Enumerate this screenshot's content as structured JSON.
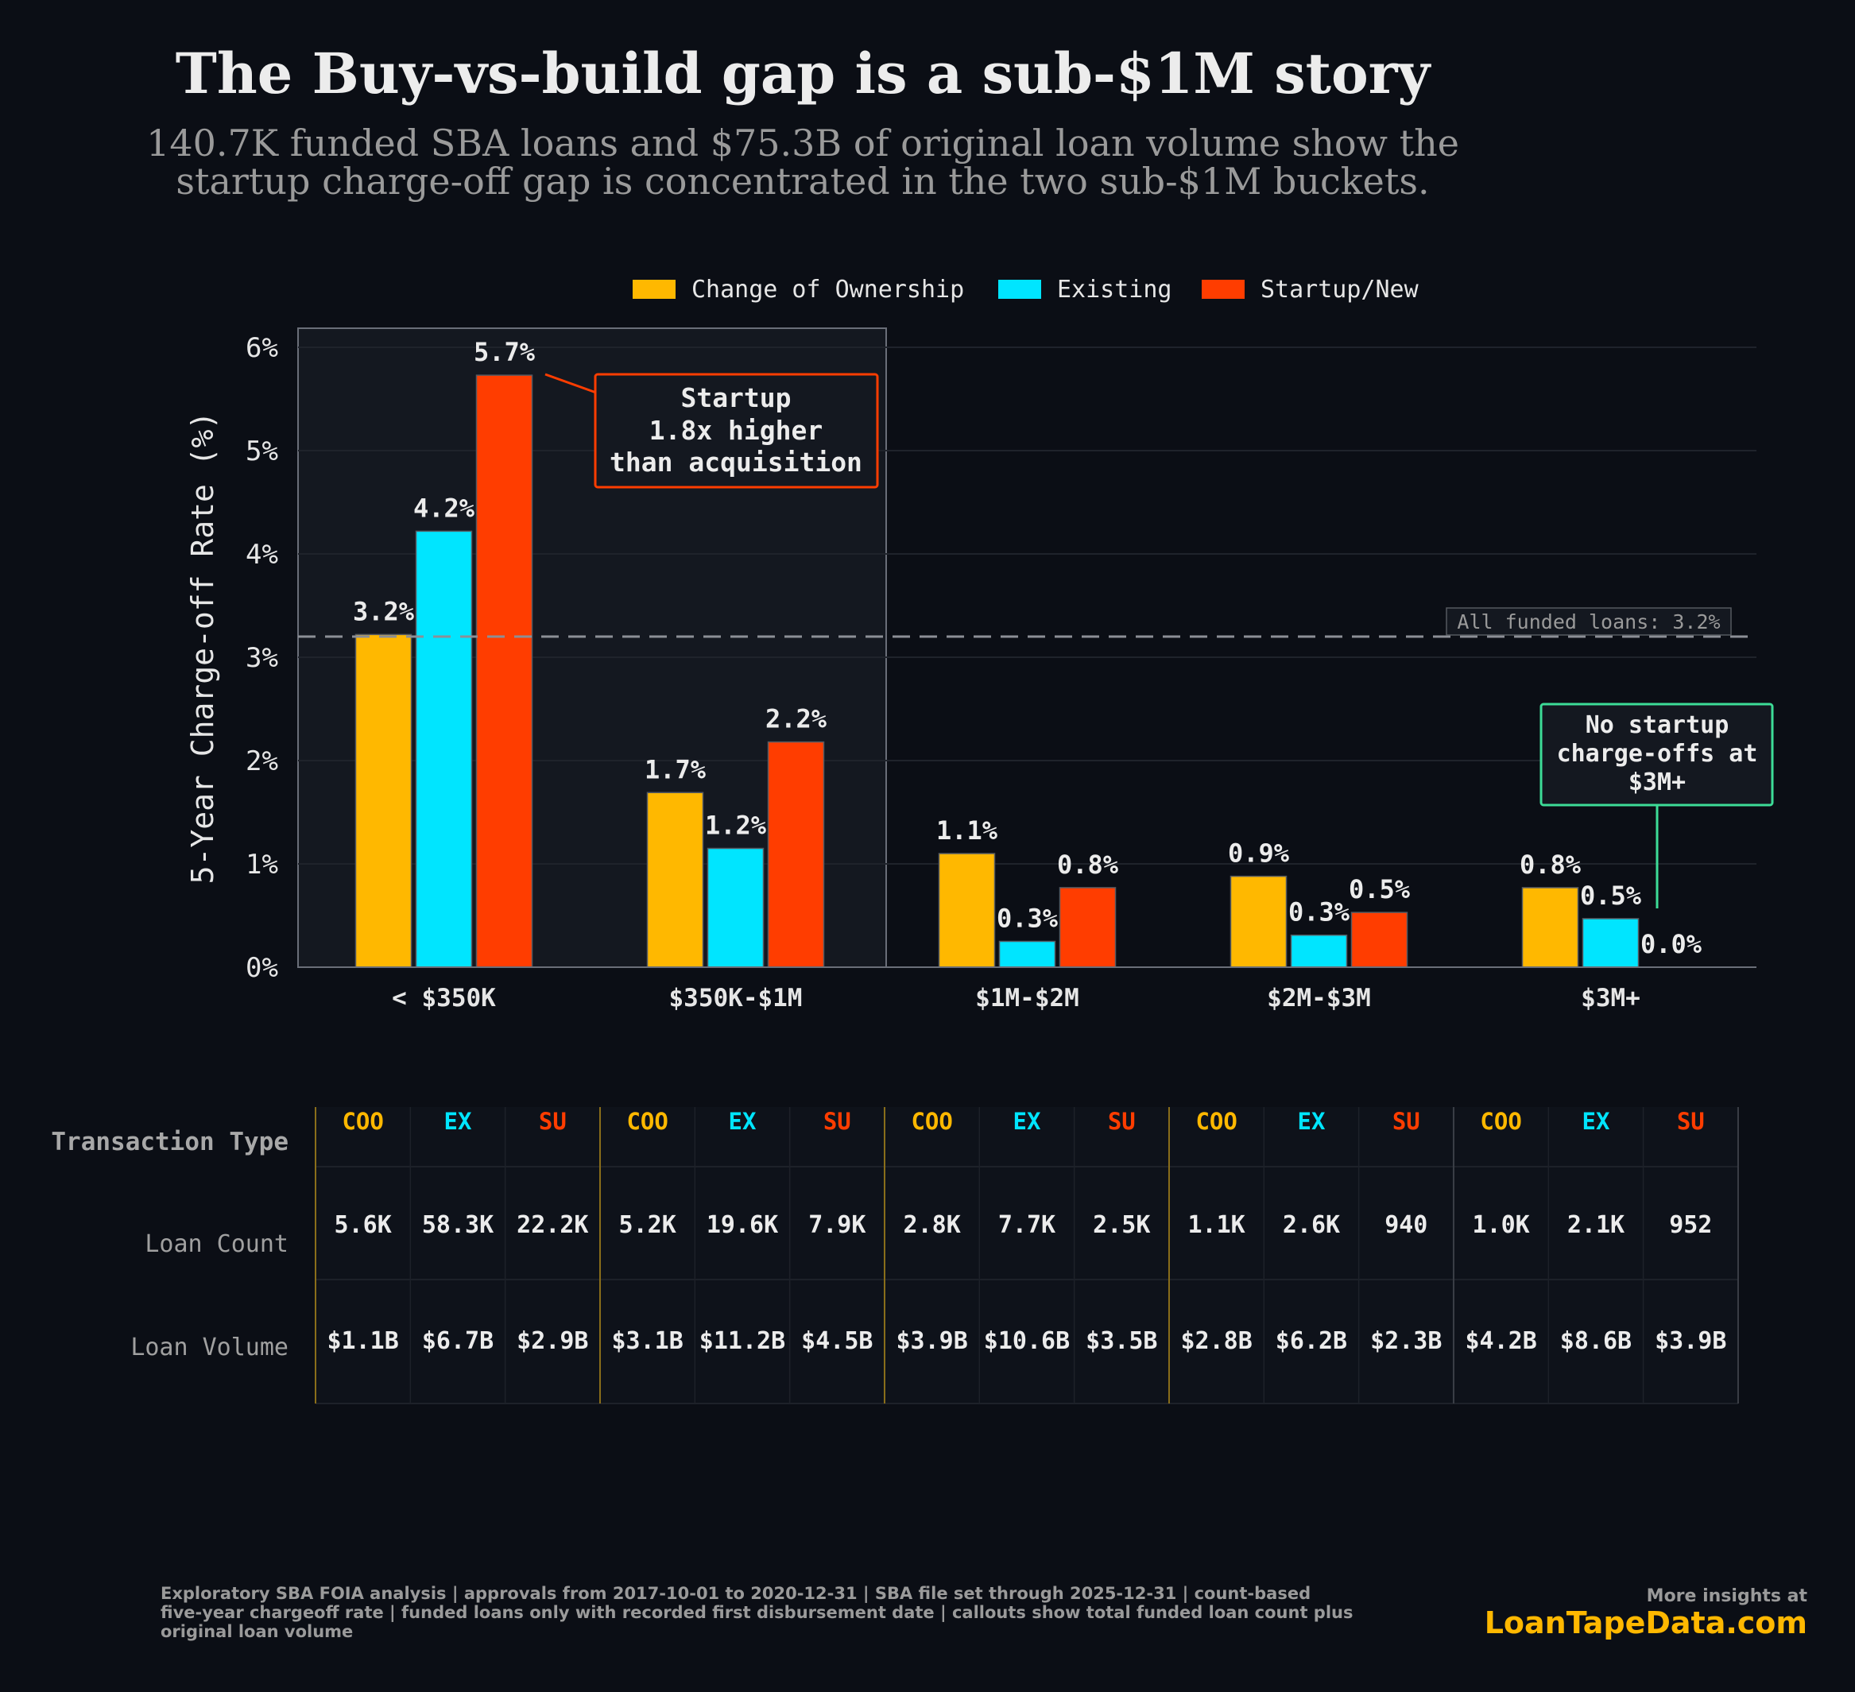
{
  "title": "The Buy-vs-build gap is a sub-$1M story",
  "subtitle_line1": "140.7K funded SBA loans and $75.3B of original loan volume show the",
  "subtitle_line2": "startup charge-off gap is concentrated in the two sub-$1M buckets.",
  "colors": {
    "background": "#0b0e15",
    "coo": "#ffb800",
    "ex": "#00e5ff",
    "su": "#ff3d00",
    "teal": "#3ddc97",
    "text": "#e6e6e6",
    "muted": "#9a9a9a"
  },
  "chart_data": {
    "type": "bar",
    "title": "The Buy-vs-build gap is a sub-$1M story",
    "xlabel": "",
    "ylabel": "5-Year Charge-off Rate (%)",
    "categories": [
      "< $350K",
      "$350K-$1M",
      "$1M-$2M",
      "$2M-$3M",
      "$3M+"
    ],
    "series": [
      {
        "name": "Change of Ownership",
        "key": "coo",
        "values": [
          3.22,
          1.69,
          1.1,
          0.88,
          0.77
        ],
        "labels": [
          "3.2%",
          "1.7%",
          "1.1%",
          "0.9%",
          "0.8%"
        ]
      },
      {
        "name": "Existing",
        "key": "ex",
        "values": [
          4.22,
          1.15,
          0.25,
          0.31,
          0.47
        ],
        "labels": [
          "4.2%",
          "1.2%",
          "0.3%",
          "0.3%",
          "0.5%"
        ]
      },
      {
        "name": "Startup/New",
        "key": "su",
        "values": [
          5.73,
          2.18,
          0.77,
          0.53,
          0.0
        ],
        "labels": [
          "5.7%",
          "2.2%",
          "0.8%",
          "0.5%",
          "0.0%"
        ]
      }
    ],
    "ylim": [
      0,
      6
    ],
    "yticks": [
      0,
      1,
      2,
      3,
      4,
      5,
      6
    ],
    "ytick_labels": [
      "0%",
      "1%",
      "2%",
      "3%",
      "4%",
      "5%",
      "6%"
    ],
    "grid": true,
    "legend": "top-center",
    "reference_line": {
      "value": 3.2,
      "label": "All funded loans: 3.2%"
    },
    "highlight_categories": [
      "< $350K",
      "$350K-$1M"
    ],
    "annotations": [
      {
        "lines": [
          "Startup",
          "1.8x higher",
          "than acquisition"
        ],
        "target": "< $350K / Startup/New"
      },
      {
        "lines": [
          "No startup",
          "charge-offs at",
          "$3M+"
        ],
        "target": "$3M+ / Startup/New"
      }
    ]
  },
  "table": {
    "header_label": "Transaction Type",
    "row_labels": [
      "Loan Count",
      "Loan Volume"
    ],
    "type_codes": [
      "COO",
      "EX",
      "SU"
    ],
    "loan_count": [
      [
        "5.6K",
        "58.3K",
        "22.2K"
      ],
      [
        "5.2K",
        "19.6K",
        "7.9K"
      ],
      [
        "2.8K",
        "7.7K",
        "2.5K"
      ],
      [
        "1.1K",
        "2.6K",
        "940"
      ],
      [
        "1.0K",
        "2.1K",
        "952"
      ]
    ],
    "loan_volume": [
      [
        "$1.1B",
        "$6.7B",
        "$2.9B"
      ],
      [
        "$3.1B",
        "$11.2B",
        "$4.5B"
      ],
      [
        "$3.9B",
        "$10.6B",
        "$3.5B"
      ],
      [
        "$2.8B",
        "$6.2B",
        "$2.3B"
      ],
      [
        "$4.2B",
        "$8.6B",
        "$3.9B"
      ]
    ]
  },
  "footer": {
    "note_line1": "Exploratory SBA FOIA analysis | approvals from 2017-10-01 to 2020-12-31 | SBA file set through 2025-12-31 | count-based",
    "note_line2": "five-year chargeoff rate | funded loans only with recorded first disbursement date | callouts show total funded loan count plus",
    "note_line3": "original loan volume",
    "more_label": "More insights at",
    "brand": "LoanTapeData.com"
  }
}
